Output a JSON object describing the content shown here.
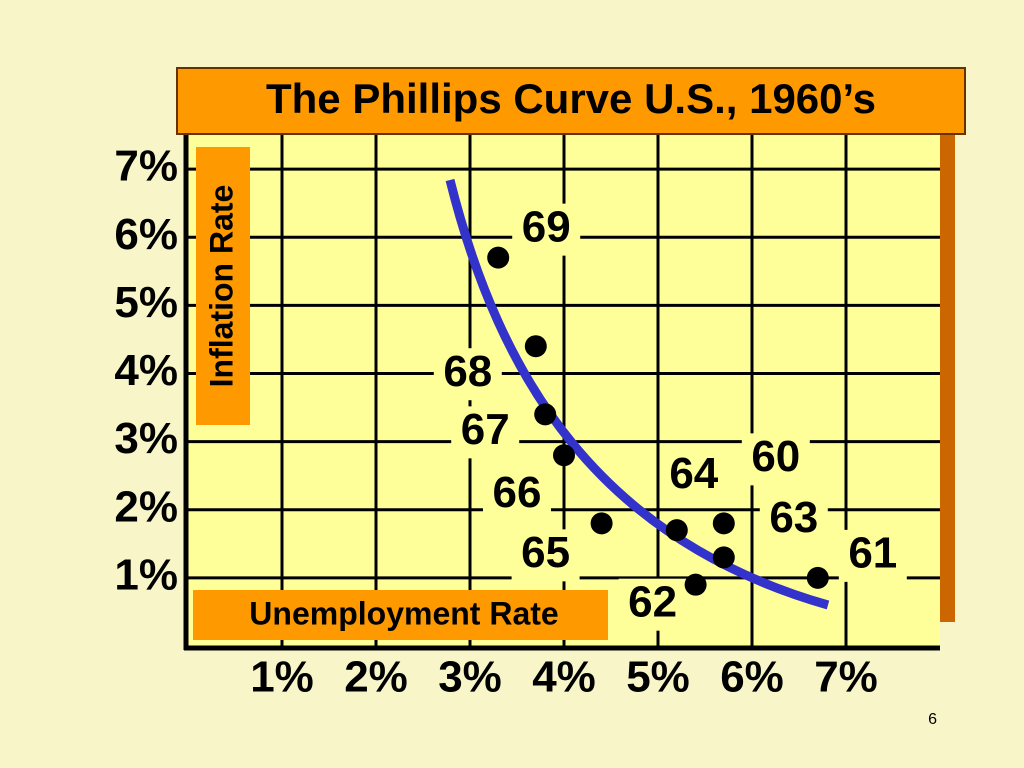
{
  "chart_data": {
    "type": "scatter",
    "title": "The Phillips Curve U.S., 1960’s",
    "x_label": "Unemployment Rate",
    "y_label": "Inflation Rate",
    "x": [
      3.3,
      3.7,
      3.8,
      4.0,
      4.4,
      5.2,
      5.7,
      5.7,
      5.4,
      6.7
    ],
    "y": [
      5.7,
      4.4,
      3.4,
      2.8,
      1.8,
      1.7,
      1.8,
      1.3,
      0.9,
      1.0
    ],
    "point_labels": [
      "69",
      "68",
      "67",
      "66",
      "65",
      "64",
      "60",
      "63",
      "62",
      "61"
    ],
    "color": "#000000",
    "xlim": [
      0,
      8
    ],
    "ylim": [
      0,
      7.5
    ],
    "xticks": [
      {
        "value": 1,
        "label": "1%"
      },
      {
        "value": 2,
        "label": "2%"
      },
      {
        "value": 3,
        "label": "3%"
      },
      {
        "value": 4,
        "label": "4%"
      },
      {
        "value": 5,
        "label": "5%"
      },
      {
        "value": 6,
        "label": "6%"
      },
      {
        "value": 7,
        "label": "7%"
      }
    ],
    "yticks": [
      {
        "value": 1,
        "label": "1%"
      },
      {
        "value": 2,
        "label": "2%"
      },
      {
        "value": 3,
        "label": "3%"
      },
      {
        "value": 4,
        "label": "4%"
      },
      {
        "value": 5,
        "label": "5%"
      },
      {
        "value": 6,
        "label": "6%"
      },
      {
        "value": 7,
        "label": "7%"
      }
    ],
    "grid": true
  },
  "slide_number": 6
}
